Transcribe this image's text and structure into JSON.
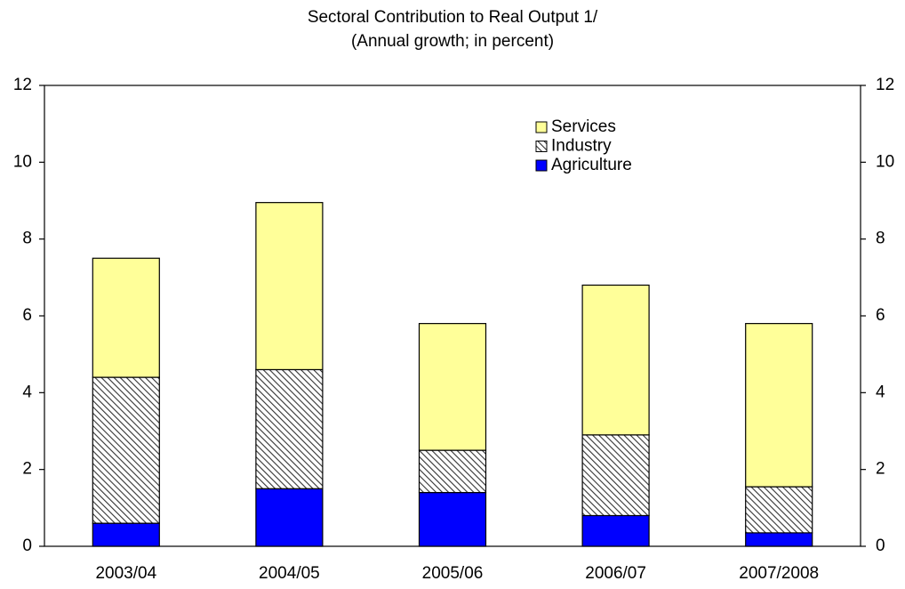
{
  "chart_data": {
    "type": "stacked_bar",
    "title": "Sectoral Contribution to Real Output 1/",
    "subtitle": "(Annual growth; in percent)",
    "categories": [
      "2003/04",
      "2004/05",
      "2005/06",
      "2006/07",
      "2007/2008"
    ],
    "series": [
      {
        "name": "Agriculture",
        "color": "#0000ff",
        "values": [
          0.6,
          1.5,
          1.4,
          0.8,
          0.35
        ]
      },
      {
        "name": "Industry",
        "color": "#ffffff",
        "pattern": "hatch",
        "values": [
          3.8,
          3.1,
          1.1,
          2.1,
          1.2
        ]
      },
      {
        "name": "Services",
        "color": "#ffff99",
        "values": [
          3.1,
          4.35,
          3.3,
          3.9,
          4.25
        ]
      }
    ],
    "ylim": [
      0,
      12
    ],
    "yticks": [
      0,
      2,
      4,
      6,
      8,
      10,
      12
    ],
    "y2lim": [
      0,
      12
    ],
    "y2ticks": [
      0,
      2,
      4,
      6,
      8,
      10,
      12
    ],
    "grid": false,
    "legend": "upper right"
  }
}
